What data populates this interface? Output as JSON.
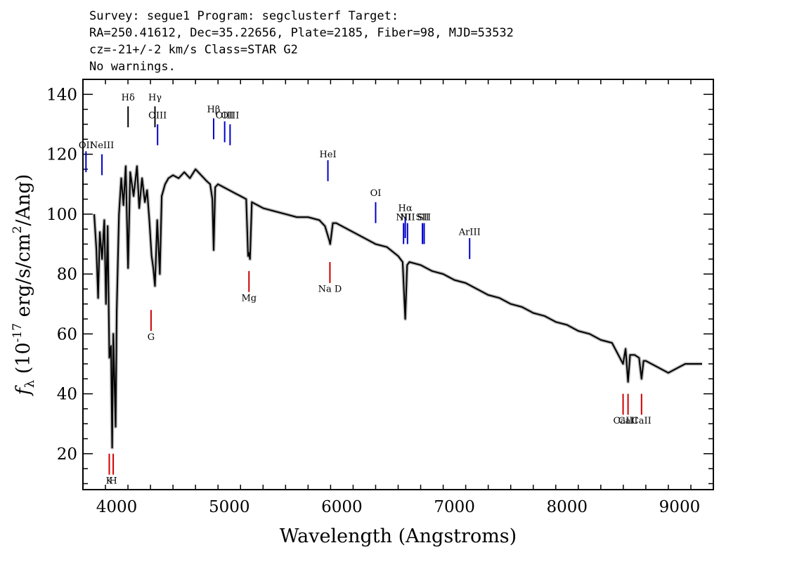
{
  "header": {
    "line1": "Survey: segue1 Program: segclusterf Target:",
    "line2": "RA=250.41612, Dec=35.22656, Plate=2185, Fiber=98, MJD=53532",
    "line3": "cz=-21+/-2 km/s Class=STAR G2",
    "line4": "No warnings."
  },
  "chart_data": {
    "type": "line",
    "xlabel": "Wavelength (Angstroms)",
    "ylabel": "f_λ (10^-17 erg/s/cm^2/Ang)",
    "xlim": [
      3700,
      9300
    ],
    "ylim": [
      8,
      145
    ],
    "xticks": [
      4000,
      5000,
      6000,
      7000,
      8000,
      9000
    ],
    "yticks": [
      20,
      40,
      60,
      80,
      100,
      120,
      140
    ],
    "series": [
      {
        "color": "#000000",
        "x": [
          3800,
          3820,
          3835,
          3850,
          3870,
          3890,
          3905,
          3920,
          3935,
          3950,
          3960,
          3970,
          3980,
          3990,
          4000,
          4020,
          4040,
          4060,
          4080,
          4101,
          4120,
          4150,
          4180,
          4200,
          4225,
          4250,
          4270,
          4290,
          4300,
          4310,
          4325,
          4340,
          4360,
          4383,
          4400,
          4430,
          4460,
          4500,
          4550,
          4600,
          4650,
          4700,
          4750,
          4800,
          4830,
          4850,
          4861,
          4875,
          4900,
          4950,
          5000,
          5050,
          5100,
          5150,
          5167,
          5175,
          5184,
          5200,
          5250,
          5300,
          5400,
          5500,
          5600,
          5700,
          5800,
          5850,
          5890,
          5896,
          5920,
          5950,
          6000,
          6100,
          6200,
          6300,
          6400,
          6500,
          6540,
          6563,
          6580,
          6600,
          6700,
          6800,
          6900,
          7000,
          7100,
          7200,
          7300,
          7400,
          7500,
          7600,
          7700,
          7800,
          7900,
          8000,
          8100,
          8200,
          8300,
          8400,
          8498,
          8520,
          8542,
          8560,
          8600,
          8640,
          8662,
          8680,
          8700,
          8800,
          8900,
          9000,
          9050,
          9100,
          9150,
          9200
        ],
        "y": [
          100,
          88,
          72,
          94,
          85,
          98,
          70,
          96,
          52,
          56,
          22,
          60,
          45,
          29,
          68,
          100,
          112,
          103,
          116,
          82,
          114,
          106,
          116,
          102,
          112,
          104,
          108,
          98,
          92,
          86,
          82,
          76,
          98,
          80,
          106,
          110,
          112,
          113,
          112,
          114,
          112,
          115,
          113,
          111,
          110,
          105,
          88,
          109,
          110,
          109,
          108,
          107,
          106,
          105,
          86,
          87,
          85,
          104,
          103,
          102,
          101,
          100,
          99,
          99,
          98,
          96,
          91,
          90,
          97,
          97,
          96,
          94,
          92,
          90,
          89,
          86,
          84,
          65,
          83,
          84,
          83,
          81,
          80,
          78,
          77,
          75,
          73,
          72,
          70,
          69,
          67,
          66,
          64,
          63,
          61,
          60,
          58,
          57,
          50,
          55,
          44,
          53,
          53,
          52,
          45,
          51,
          51,
          49,
          47,
          49,
          50,
          50,
          50,
          50
        ]
      }
    ],
    "emission_lines": [
      {
        "label": "OII",
        "wavelength": 3727,
        "color": "#0000cc",
        "flux_top": 121,
        "flux_bottom": 114,
        "label_flux": 122
      },
      {
        "label": "NeIII",
        "wavelength": 3869,
        "color": "#0000cc",
        "flux_top": 120,
        "flux_bottom": 113,
        "label_flux": 122
      },
      {
        "label": "Hδ",
        "wavelength": 4101,
        "color": "#000000",
        "flux_top": 136,
        "flux_bottom": 129,
        "label_flux": 138
      },
      {
        "label": "Hγ",
        "wavelength": 4340,
        "color": "#000000",
        "flux_top": 136,
        "flux_bottom": 129,
        "label_flux": 138
      },
      {
        "label": "OIII",
        "wavelength": 4363,
        "color": "#0000cc",
        "flux_top": 130,
        "flux_bottom": 123,
        "label_flux": 132
      },
      {
        "label": "Hβ",
        "wavelength": 4861,
        "color": "#0000cc",
        "flux_top": 132,
        "flux_bottom": 125,
        "label_flux": 134
      },
      {
        "label": "OIII",
        "wavelength": 4959,
        "color": "#0000cc",
        "flux_top": 131,
        "flux_bottom": 124,
        "label_flux": 132
      },
      {
        "label": "OIII",
        "wavelength": 5007,
        "color": "#0000cc",
        "flux_top": 130,
        "flux_bottom": 123,
        "label_flux": 132
      },
      {
        "label": "HeI",
        "wavelength": 5876,
        "color": "#0000cc",
        "flux_top": 118,
        "flux_bottom": 111,
        "label_flux": 119
      },
      {
        "label": "OI",
        "wavelength": 6300,
        "color": "#0000cc",
        "flux_top": 104,
        "flux_bottom": 97,
        "label_flux": 106
      },
      {
        "label": "NII",
        "wavelength": 6548,
        "color": "#0000cc",
        "flux_top": 97,
        "flux_bottom": 90,
        "label_flux": 98
      },
      {
        "label": "Hα",
        "wavelength": 6563,
        "color": "#0000cc",
        "flux_top": 99,
        "flux_bottom": 92,
        "label_flux": 101
      },
      {
        "label": "NII",
        "wavelength": 6583,
        "color": "#0000cc",
        "flux_top": 97,
        "flux_bottom": 90,
        "label_flux": 98
      },
      {
        "label": "SII",
        "wavelength": 6716,
        "color": "#0000cc",
        "flux_top": 97,
        "flux_bottom": 90,
        "label_flux": 98
      },
      {
        "label": "SII",
        "wavelength": 6731,
        "color": "#0000cc",
        "flux_top": 97,
        "flux_bottom": 90,
        "label_flux": 98
      },
      {
        "label": "ArIII",
        "wavelength": 7135,
        "color": "#0000cc",
        "flux_top": 92,
        "flux_bottom": 85,
        "label_flux": 93
      }
    ],
    "absorption_lines": [
      {
        "label": "K",
        "wavelength": 3934,
        "color": "#cc0000",
        "flux_top": 20,
        "flux_bottom": 13,
        "label_flux": 10
      },
      {
        "label": "H",
        "wavelength": 3969,
        "color": "#cc0000",
        "flux_top": 20,
        "flux_bottom": 13,
        "label_flux": 10
      },
      {
        "label": "G",
        "wavelength": 4305,
        "color": "#cc0000",
        "flux_top": 68,
        "flux_bottom": 61,
        "label_flux": 58
      },
      {
        "label": "Mg",
        "wavelength": 5175,
        "color": "#cc0000",
        "flux_top": 81,
        "flux_bottom": 74,
        "label_flux": 71
      },
      {
        "label": "Na D",
        "wavelength": 5894,
        "color": "#cc0000",
        "flux_top": 84,
        "flux_bottom": 77,
        "label_flux": 74
      },
      {
        "label": "CaII",
        "wavelength": 8498,
        "color": "#cc0000",
        "flux_top": 40,
        "flux_bottom": 33,
        "label_flux": 30
      },
      {
        "label": "CaII",
        "wavelength": 8542,
        "color": "#cc0000",
        "flux_top": 40,
        "flux_bottom": 33,
        "label_flux": 30
      },
      {
        "label": "CaII",
        "wavelength": 8662,
        "color": "#cc0000",
        "flux_top": 40,
        "flux_bottom": 33,
        "label_flux": 30
      }
    ]
  }
}
